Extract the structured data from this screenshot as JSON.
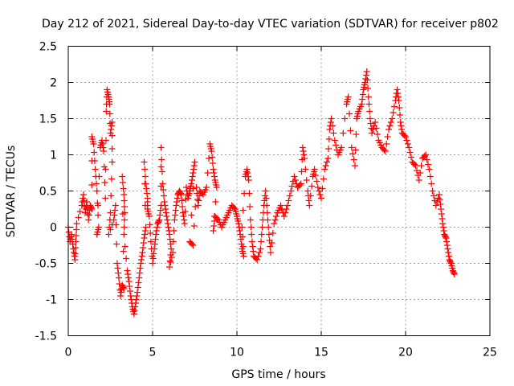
{
  "chart_data": {
    "type": "scatter",
    "title": "Day 212 of 2021, Sidereal Day-to-day VTEC variation (SDTVAR) for receiver p802",
    "xlabel": "GPS time / hours",
    "ylabel": "SDTVAR / TECUs",
    "xlim": [
      0,
      25
    ],
    "ylim": [
      -1.5,
      2.5
    ],
    "xticks": [
      0,
      5,
      10,
      15,
      20,
      25
    ],
    "xtick_labels": [
      "0",
      "5",
      "10",
      "15",
      "20",
      "25"
    ],
    "yticks": [
      -1.5,
      -1,
      -0.5,
      0,
      0.5,
      1,
      1.5,
      2,
      2.5
    ],
    "ytick_labels": [
      "-1.5",
      "-1",
      "-0.5",
      "0",
      "0.5",
      "1",
      "1.5",
      "2",
      "2.5"
    ],
    "grid": true,
    "marker": "plus",
    "series": [
      {
        "name": "SDTVAR",
        "color": "#ff0000",
        "points": [
          [
            0.0,
            0.0
          ],
          [
            0.1,
            -0.2
          ],
          [
            0.2,
            -0.1
          ],
          [
            0.3,
            -0.3
          ],
          [
            0.4,
            -0.45
          ],
          [
            0.45,
            -0.2
          ],
          [
            0.5,
            0.05
          ],
          [
            0.8,
            0.3
          ],
          [
            0.9,
            0.45
          ],
          [
            1.0,
            0.2
          ],
          [
            1.1,
            0.35
          ],
          [
            1.2,
            0.1
          ],
          [
            1.3,
            0.3
          ],
          [
            1.4,
            0.25
          ],
          [
            1.4,
            1.25
          ],
          [
            1.5,
            1.15
          ],
          [
            1.6,
            0.8
          ],
          [
            1.7,
            0.5
          ],
          [
            1.8,
            0.0
          ],
          [
            1.7,
            -0.1
          ],
          [
            1.9,
            1.1
          ],
          [
            2.0,
            1.2
          ],
          [
            2.1,
            1.05
          ],
          [
            2.2,
            0.4
          ],
          [
            2.25,
            1.6
          ],
          [
            2.3,
            1.9
          ],
          [
            2.4,
            1.8
          ],
          [
            2.45,
            1.7
          ],
          [
            2.5,
            1.3
          ],
          [
            2.6,
            1.45
          ],
          [
            2.6,
            0.9
          ],
          [
            2.5,
            0.2
          ],
          [
            2.4,
            -0.1
          ],
          [
            2.7,
            0.1
          ],
          [
            2.8,
            0.3
          ],
          [
            2.9,
            -0.5
          ],
          [
            3.0,
            -0.7
          ],
          [
            3.1,
            -0.95
          ],
          [
            3.2,
            -0.8
          ],
          [
            3.3,
            -0.85
          ],
          [
            3.2,
            0.7
          ],
          [
            3.3,
            0.45
          ],
          [
            3.35,
            0.2
          ],
          [
            3.3,
            -0.1
          ],
          [
            3.5,
            -0.6
          ],
          [
            3.6,
            -0.75
          ],
          [
            3.7,
            -0.95
          ],
          [
            3.8,
            -1.1
          ],
          [
            3.9,
            -1.2
          ],
          [
            4.0,
            -1.05
          ],
          [
            4.1,
            -0.9
          ],
          [
            4.2,
            -0.7
          ],
          [
            4.3,
            -0.5
          ],
          [
            4.4,
            -0.35
          ],
          [
            4.5,
            -0.15
          ],
          [
            4.6,
            0.0
          ],
          [
            4.5,
            0.9
          ],
          [
            4.6,
            0.6
          ],
          [
            4.7,
            0.4
          ],
          [
            4.7,
            0.25
          ],
          [
            4.8,
            0.15
          ],
          [
            4.9,
            -0.2
          ],
          [
            5.0,
            -0.5
          ],
          [
            5.1,
            -0.3
          ],
          [
            5.2,
            -0.1
          ],
          [
            5.3,
            0.05
          ],
          [
            5.4,
            0.1
          ],
          [
            5.5,
            0.3
          ],
          [
            5.5,
            1.1
          ],
          [
            5.6,
            0.6
          ],
          [
            5.7,
            0.35
          ],
          [
            5.8,
            0.2
          ],
          [
            5.9,
            0.05
          ],
          [
            6.0,
            -0.1
          ],
          [
            6.1,
            -0.3
          ],
          [
            6.0,
            -0.55
          ],
          [
            6.2,
            -0.35
          ],
          [
            6.3,
            0.1
          ],
          [
            6.4,
            0.3
          ],
          [
            6.5,
            0.45
          ],
          [
            6.6,
            0.5
          ],
          [
            6.7,
            0.45
          ],
          [
            6.8,
            0.2
          ],
          [
            6.9,
            0.05
          ],
          [
            7.0,
            0.55
          ],
          [
            7.1,
            0.4
          ],
          [
            7.2,
            0.5
          ],
          [
            7.3,
            0.6
          ],
          [
            7.4,
            0.75
          ],
          [
            7.5,
            0.9
          ],
          [
            7.2,
            -0.2
          ],
          [
            7.4,
            -0.25
          ],
          [
            7.6,
            0.55
          ],
          [
            7.7,
            0.3
          ],
          [
            7.8,
            0.5
          ],
          [
            8.0,
            0.45
          ],
          [
            8.2,
            0.55
          ],
          [
            8.4,
            1.15
          ],
          [
            8.5,
            1.05
          ],
          [
            8.6,
            0.8
          ],
          [
            8.7,
            0.65
          ],
          [
            8.8,
            0.55
          ],
          [
            8.6,
            -0.05
          ],
          [
            8.7,
            0.15
          ],
          [
            8.9,
            0.1
          ],
          [
            9.1,
            0.0
          ],
          [
            9.3,
            0.1
          ],
          [
            9.5,
            0.2
          ],
          [
            9.7,
            0.3
          ],
          [
            9.9,
            0.25
          ],
          [
            10.0,
            0.15
          ],
          [
            10.1,
            0.05
          ],
          [
            10.2,
            -0.1
          ],
          [
            10.3,
            -0.3
          ],
          [
            10.4,
            -0.4
          ],
          [
            10.3,
            0.0
          ],
          [
            10.5,
            0.7
          ],
          [
            10.6,
            0.8
          ],
          [
            10.7,
            0.65
          ],
          [
            10.8,
            0.1
          ],
          [
            10.9,
            -0.2
          ],
          [
            11.0,
            -0.4
          ],
          [
            11.2,
            -0.45
          ],
          [
            11.4,
            -0.3
          ],
          [
            11.5,
            0.0
          ],
          [
            11.6,
            0.3
          ],
          [
            11.7,
            0.5
          ],
          [
            11.8,
            0.2
          ],
          [
            11.9,
            -0.1
          ],
          [
            12.0,
            -0.35
          ],
          [
            12.2,
            0.05
          ],
          [
            12.4,
            0.2
          ],
          [
            12.6,
            0.3
          ],
          [
            12.8,
            0.15
          ],
          [
            13.0,
            0.3
          ],
          [
            13.2,
            0.5
          ],
          [
            13.4,
            0.7
          ],
          [
            13.6,
            0.55
          ],
          [
            13.8,
            0.6
          ],
          [
            13.9,
            1.1
          ],
          [
            14.0,
            0.95
          ],
          [
            14.2,
            0.5
          ],
          [
            14.3,
            0.3
          ],
          [
            14.5,
            0.7
          ],
          [
            14.6,
            0.8
          ],
          [
            14.8,
            0.55
          ],
          [
            15.0,
            0.4
          ],
          [
            15.2,
            0.8
          ],
          [
            15.4,
            0.95
          ],
          [
            15.5,
            1.35
          ],
          [
            15.6,
            1.5
          ],
          [
            15.8,
            1.2
          ],
          [
            16.0,
            1.0
          ],
          [
            16.2,
            1.1
          ],
          [
            16.5,
            1.7
          ],
          [
            16.6,
            1.8
          ],
          [
            16.8,
            1.1
          ],
          [
            17.0,
            0.85
          ],
          [
            17.1,
            1.5
          ],
          [
            17.2,
            1.6
          ],
          [
            17.4,
            1.7
          ],
          [
            17.5,
            1.9
          ],
          [
            17.6,
            2.0
          ],
          [
            17.7,
            2.15
          ],
          [
            17.8,
            1.8
          ],
          [
            17.9,
            1.5
          ],
          [
            18.0,
            1.3
          ],
          [
            18.2,
            1.45
          ],
          [
            18.4,
            1.2
          ],
          [
            18.6,
            1.1
          ],
          [
            18.8,
            1.05
          ],
          [
            19.0,
            1.35
          ],
          [
            19.2,
            1.5
          ],
          [
            19.4,
            1.75
          ],
          [
            19.5,
            1.9
          ],
          [
            19.6,
            1.75
          ],
          [
            19.7,
            1.45
          ],
          [
            19.8,
            1.3
          ],
          [
            20.0,
            1.25
          ],
          [
            20.2,
            1.1
          ],
          [
            20.4,
            0.9
          ],
          [
            20.6,
            0.85
          ],
          [
            20.8,
            0.65
          ],
          [
            21.0,
            0.95
          ],
          [
            21.2,
            1.0
          ],
          [
            21.4,
            0.8
          ],
          [
            21.6,
            0.5
          ],
          [
            21.8,
            0.3
          ],
          [
            22.0,
            0.45
          ],
          [
            22.1,
            0.25
          ],
          [
            22.2,
            0.05
          ],
          [
            22.3,
            -0.1
          ],
          [
            22.4,
            -0.15
          ],
          [
            22.5,
            -0.3
          ],
          [
            22.6,
            -0.45
          ],
          [
            22.7,
            -0.5
          ],
          [
            22.8,
            -0.6
          ],
          [
            22.9,
            -0.65
          ]
        ]
      }
    ]
  }
}
